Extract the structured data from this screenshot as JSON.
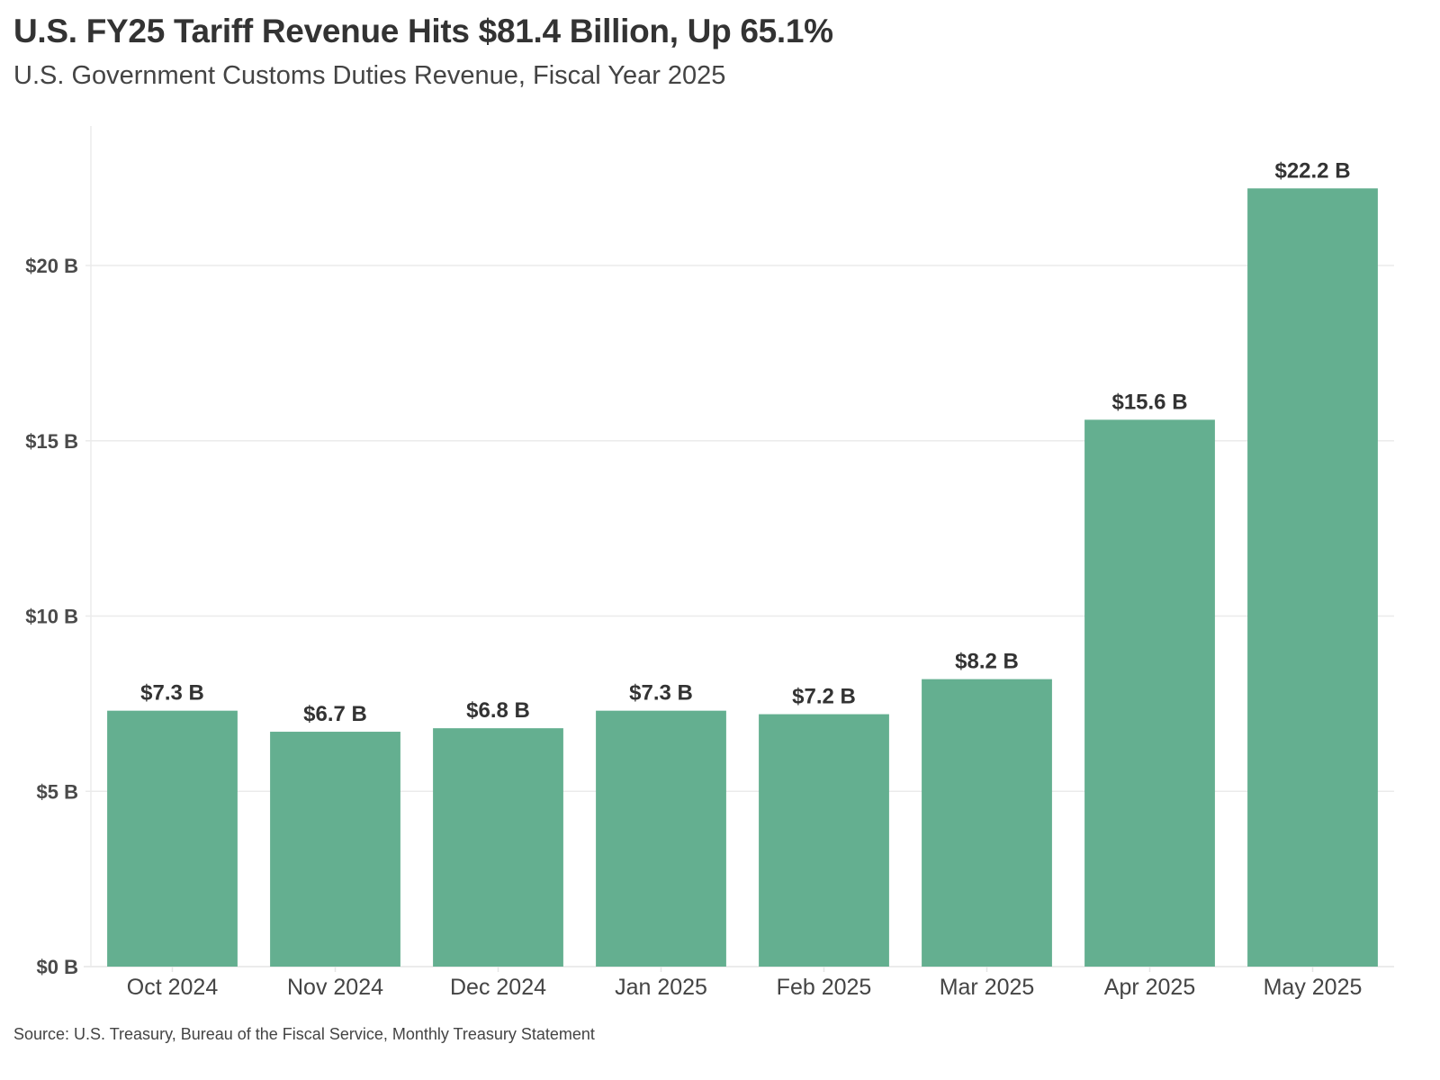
{
  "chart_data": {
    "type": "bar",
    "title": "U.S. FY25 Tariff Revenue Hits $81.4 Billion, Up 65.1%",
    "subtitle": "U.S. Government Customs Duties Revenue, Fiscal Year 2025",
    "xlabel": "",
    "ylabel": "",
    "categories": [
      "Oct 2024",
      "Nov 2024",
      "Dec 2024",
      "Jan 2025",
      "Feb 2025",
      "Mar 2025",
      "Apr 2025",
      "May 2025"
    ],
    "values": [
      7.3,
      6.7,
      6.8,
      7.3,
      7.2,
      8.2,
      15.6,
      22.2
    ],
    "data_labels": [
      "$7.3 B",
      "$6.7 B",
      "$6.8 B",
      "$7.3 B",
      "$7.2 B",
      "$8.2 B",
      "$15.6 B",
      "$22.2 B"
    ],
    "units": "billions USD",
    "ylim": [
      0,
      24
    ],
    "yticks": [
      0,
      5,
      10,
      15,
      20
    ],
    "ytick_labels": [
      "$0 B",
      "$5 B",
      "$10 B",
      "$15 B",
      "$20 B"
    ],
    "grid": "horizontal",
    "legend": "none",
    "bar_color": "#64AF90",
    "source": "Source: U.S. Treasury, Bureau of the Fiscal Service, Monthly Treasury Statement"
  }
}
